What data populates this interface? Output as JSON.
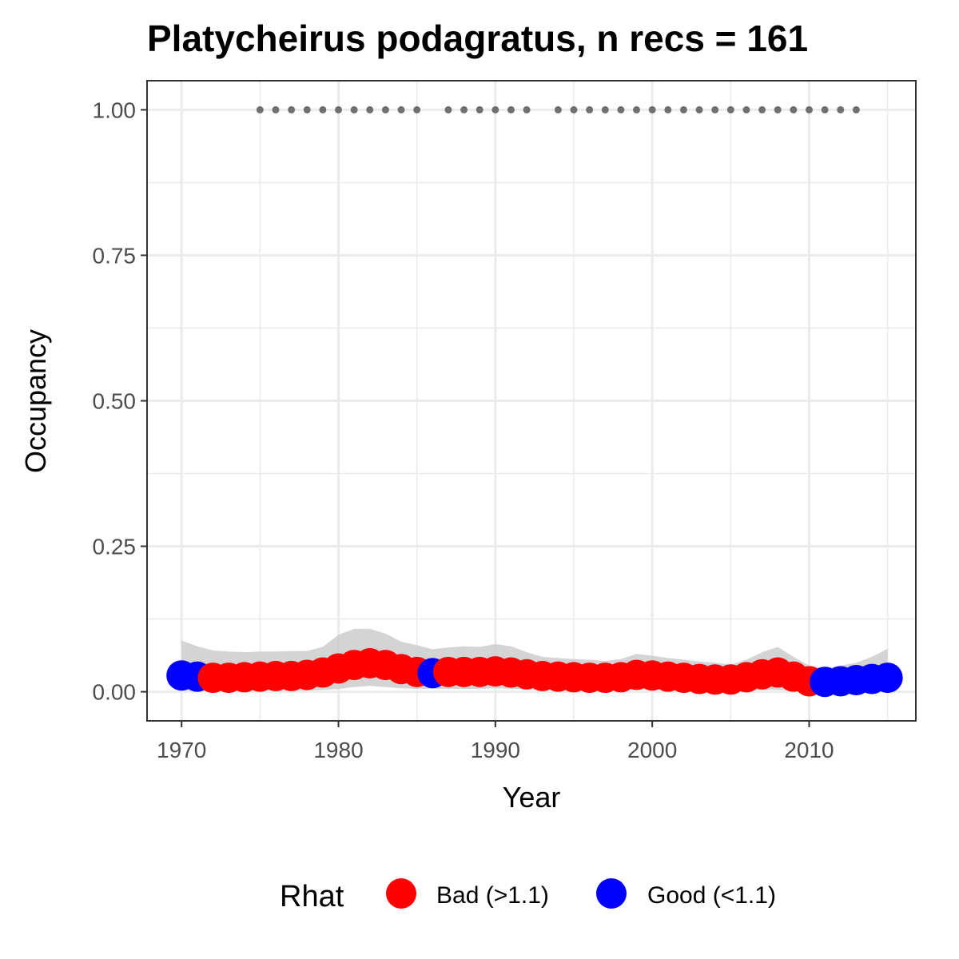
{
  "chart_data": {
    "type": "scatter",
    "title": "Platycheirus podagratus, n recs = 161",
    "xlabel": "Year",
    "ylabel": "Occupancy",
    "xlim": [
      1967.8,
      2016.8
    ],
    "ylim": [
      -0.05,
      1.05
    ],
    "x_ticks": [
      1970,
      1980,
      1990,
      2000,
      2010
    ],
    "x_tick_labels": [
      "1970",
      "1980",
      "1990",
      "2000",
      "2010"
    ],
    "y_ticks": [
      0,
      0.25,
      0.5,
      0.75,
      1.0
    ],
    "y_tick_labels": [
      "0.00",
      "0.25",
      "0.50",
      "0.75",
      "1.00"
    ],
    "grid": true,
    "legend": {
      "title": "Rhat",
      "position": "bottom",
      "entries": [
        {
          "label": "Bad (>1.1)",
          "color": "#ff0000"
        },
        {
          "label": "Good (<1.1)",
          "color": "#0000ff"
        }
      ]
    },
    "colors": {
      "bad": "#ff0000",
      "good": "#0000ff",
      "ribbon": "#cccccc",
      "records": "#707070",
      "grid": "#ebebeb"
    },
    "points": [
      {
        "x": 1970,
        "y": 0.028,
        "rhat": "good"
      },
      {
        "x": 1971,
        "y": 0.026,
        "rhat": "good"
      },
      {
        "x": 1972,
        "y": 0.024,
        "rhat": "bad"
      },
      {
        "x": 1973,
        "y": 0.024,
        "rhat": "bad"
      },
      {
        "x": 1974,
        "y": 0.025,
        "rhat": "bad"
      },
      {
        "x": 1975,
        "y": 0.026,
        "rhat": "bad"
      },
      {
        "x": 1976,
        "y": 0.027,
        "rhat": "bad"
      },
      {
        "x": 1977,
        "y": 0.027,
        "rhat": "bad"
      },
      {
        "x": 1978,
        "y": 0.029,
        "rhat": "bad"
      },
      {
        "x": 1979,
        "y": 0.033,
        "rhat": "bad"
      },
      {
        "x": 1980,
        "y": 0.04,
        "rhat": "bad"
      },
      {
        "x": 1981,
        "y": 0.046,
        "rhat": "bad"
      },
      {
        "x": 1982,
        "y": 0.049,
        "rhat": "bad"
      },
      {
        "x": 1983,
        "y": 0.046,
        "rhat": "bad"
      },
      {
        "x": 1984,
        "y": 0.039,
        "rhat": "bad"
      },
      {
        "x": 1985,
        "y": 0.034,
        "rhat": "bad"
      },
      {
        "x": 1986,
        "y": 0.032,
        "rhat": "good"
      },
      {
        "x": 1987,
        "y": 0.034,
        "rhat": "bad"
      },
      {
        "x": 1988,
        "y": 0.034,
        "rhat": "bad"
      },
      {
        "x": 1989,
        "y": 0.034,
        "rhat": "bad"
      },
      {
        "x": 1990,
        "y": 0.035,
        "rhat": "bad"
      },
      {
        "x": 1991,
        "y": 0.033,
        "rhat": "bad"
      },
      {
        "x": 1992,
        "y": 0.03,
        "rhat": "bad"
      },
      {
        "x": 1993,
        "y": 0.027,
        "rhat": "bad"
      },
      {
        "x": 1994,
        "y": 0.026,
        "rhat": "bad"
      },
      {
        "x": 1995,
        "y": 0.025,
        "rhat": "bad"
      },
      {
        "x": 1996,
        "y": 0.024,
        "rhat": "bad"
      },
      {
        "x": 1997,
        "y": 0.024,
        "rhat": "bad"
      },
      {
        "x": 1998,
        "y": 0.025,
        "rhat": "bad"
      },
      {
        "x": 1999,
        "y": 0.029,
        "rhat": "bad"
      },
      {
        "x": 2000,
        "y": 0.028,
        "rhat": "bad"
      },
      {
        "x": 2001,
        "y": 0.026,
        "rhat": "bad"
      },
      {
        "x": 2002,
        "y": 0.024,
        "rhat": "bad"
      },
      {
        "x": 2003,
        "y": 0.022,
        "rhat": "bad"
      },
      {
        "x": 2004,
        "y": 0.021,
        "rhat": "bad"
      },
      {
        "x": 2005,
        "y": 0.021,
        "rhat": "bad"
      },
      {
        "x": 2006,
        "y": 0.025,
        "rhat": "bad"
      },
      {
        "x": 2007,
        "y": 0.03,
        "rhat": "bad"
      },
      {
        "x": 2008,
        "y": 0.033,
        "rhat": "bad"
      },
      {
        "x": 2009,
        "y": 0.026,
        "rhat": "bad"
      },
      {
        "x": 2010,
        "y": 0.018,
        "rhat": "bad"
      },
      {
        "x": 2011,
        "y": 0.017,
        "rhat": "good"
      },
      {
        "x": 2012,
        "y": 0.018,
        "rhat": "good"
      },
      {
        "x": 2013,
        "y": 0.02,
        "rhat": "good"
      },
      {
        "x": 2014,
        "y": 0.022,
        "rhat": "good"
      },
      {
        "x": 2015,
        "y": 0.024,
        "rhat": "good"
      }
    ],
    "ribbon": {
      "x": [
        1970,
        1971,
        1972,
        1973,
        1974,
        1975,
        1976,
        1977,
        1978,
        1979,
        1980,
        1981,
        1982,
        1983,
        1984,
        1985,
        1986,
        1987,
        1988,
        1989,
        1990,
        1991,
        1992,
        1993,
        1994,
        1995,
        1996,
        1997,
        1998,
        1999,
        2000,
        2001,
        2002,
        2003,
        2004,
        2005,
        2006,
        2007,
        2008,
        2009,
        2010,
        2011,
        2012,
        2013,
        2014,
        2015
      ],
      "lower": [
        0.002,
        0.002,
        0.002,
        0.002,
        0.002,
        0.002,
        0.002,
        0.002,
        0.002,
        0.003,
        0.005,
        0.008,
        0.01,
        0.008,
        0.006,
        0.005,
        0.005,
        0.005,
        0.005,
        0.005,
        0.006,
        0.005,
        0.004,
        0.003,
        0.003,
        0.003,
        0.003,
        0.003,
        0.003,
        0.004,
        0.004,
        0.003,
        0.003,
        0.002,
        0.002,
        0.002,
        0.002,
        0.003,
        0.003,
        0.002,
        0.001,
        0.001,
        0.001,
        0.001,
        0.001,
        0.001
      ],
      "upper": [
        0.088,
        0.078,
        0.071,
        0.069,
        0.068,
        0.069,
        0.069,
        0.07,
        0.07,
        0.077,
        0.098,
        0.108,
        0.108,
        0.1,
        0.086,
        0.08,
        0.073,
        0.076,
        0.078,
        0.077,
        0.082,
        0.078,
        0.068,
        0.06,
        0.058,
        0.056,
        0.055,
        0.053,
        0.056,
        0.065,
        0.062,
        0.058,
        0.055,
        0.052,
        0.05,
        0.047,
        0.055,
        0.068,
        0.077,
        0.06,
        0.045,
        0.04,
        0.045,
        0.05,
        0.06,
        0.074
      ]
    },
    "records": {
      "y": 1.0,
      "x": [
        1975,
        1976,
        1977,
        1978,
        1979,
        1980,
        1981,
        1982,
        1983,
        1984,
        1985,
        1987,
        1988,
        1989,
        1990,
        1991,
        1992,
        1994,
        1995,
        1996,
        1997,
        1998,
        1999,
        2000,
        2001,
        2002,
        2003,
        2004,
        2005,
        2006,
        2007,
        2008,
        2009,
        2010,
        2011,
        2012,
        2013
      ]
    }
  }
}
